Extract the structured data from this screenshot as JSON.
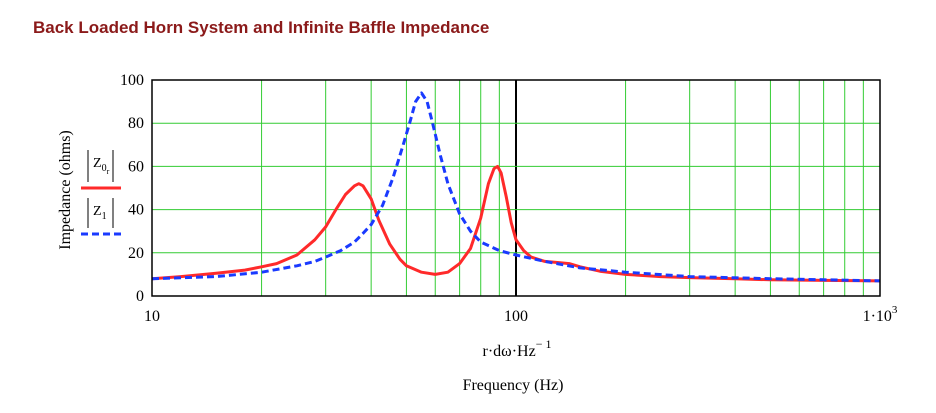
{
  "chart_data": {
    "type": "line",
    "title": "Back Loaded Horn System and Infinite Baffle Impedance",
    "xlabel_expr": "r·dω·Hz",
    "xlabel_exp": "− 1",
    "xlabel": "Frequency (Hz)",
    "ylabel": "Impedance (ohms)",
    "x_scale": "log",
    "xlim": [
      10,
      1000
    ],
    "ylim": [
      0,
      100
    ],
    "yticks": [
      0,
      20,
      40,
      60,
      80,
      100
    ],
    "xtick_labels": [
      {
        "value": 10,
        "text": "10"
      },
      {
        "value": 100,
        "text": "100"
      },
      {
        "value": 1000,
        "text": "1·10",
        "sup": "3"
      }
    ],
    "grid": true,
    "grid_color": "#33cc33",
    "legend_position": "left",
    "series": [
      {
        "name": "|Z0 r|",
        "legend_main": "Z",
        "legend_sub": "0",
        "legend_subsub": "r",
        "color": "#ff2a2a",
        "style": "solid",
        "x": [
          10,
          12,
          15,
          18,
          20,
          22,
          25,
          28,
          30,
          32,
          34,
          36,
          37,
          38,
          40,
          42,
          45,
          48,
          50,
          55,
          60,
          65,
          70,
          75,
          80,
          84,
          87,
          89,
          91,
          94,
          97,
          100,
          105,
          110,
          120,
          130,
          140,
          150,
          170,
          200,
          250,
          300,
          400,
          500,
          700,
          1000
        ],
        "y": [
          8,
          9,
          10.5,
          12,
          13.5,
          15,
          19,
          26,
          32,
          40,
          47,
          51,
          52,
          51,
          45,
          35,
          24,
          17,
          14,
          11,
          10,
          11,
          15,
          22,
          36,
          52,
          59,
          60,
          57,
          46,
          34,
          26,
          21,
          18,
          16,
          15.5,
          15,
          13.5,
          11.5,
          10,
          9,
          8.5,
          8,
          7.5,
          7.2,
          7
        ]
      },
      {
        "name": "|Z1|",
        "legend_main": "Z",
        "legend_sub": "1",
        "legend_subsub": "",
        "color": "#1a3aff",
        "style": "dashed",
        "x": [
          10,
          15,
          20,
          25,
          28,
          30,
          33,
          36,
          38,
          40,
          43,
          46,
          49,
          51,
          53,
          55,
          57,
          59,
          62,
          65,
          70,
          75,
          80,
          90,
          100,
          120,
          150,
          200,
          300,
          500,
          1000
        ],
        "y": [
          8,
          9,
          11,
          14,
          16,
          18,
          21,
          25,
          29,
          33,
          42,
          55,
          70,
          80,
          90,
          94,
          90,
          80,
          65,
          52,
          38,
          30,
          25,
          21,
          19,
          16,
          13,
          11,
          9,
          8,
          7
        ]
      }
    ]
  }
}
